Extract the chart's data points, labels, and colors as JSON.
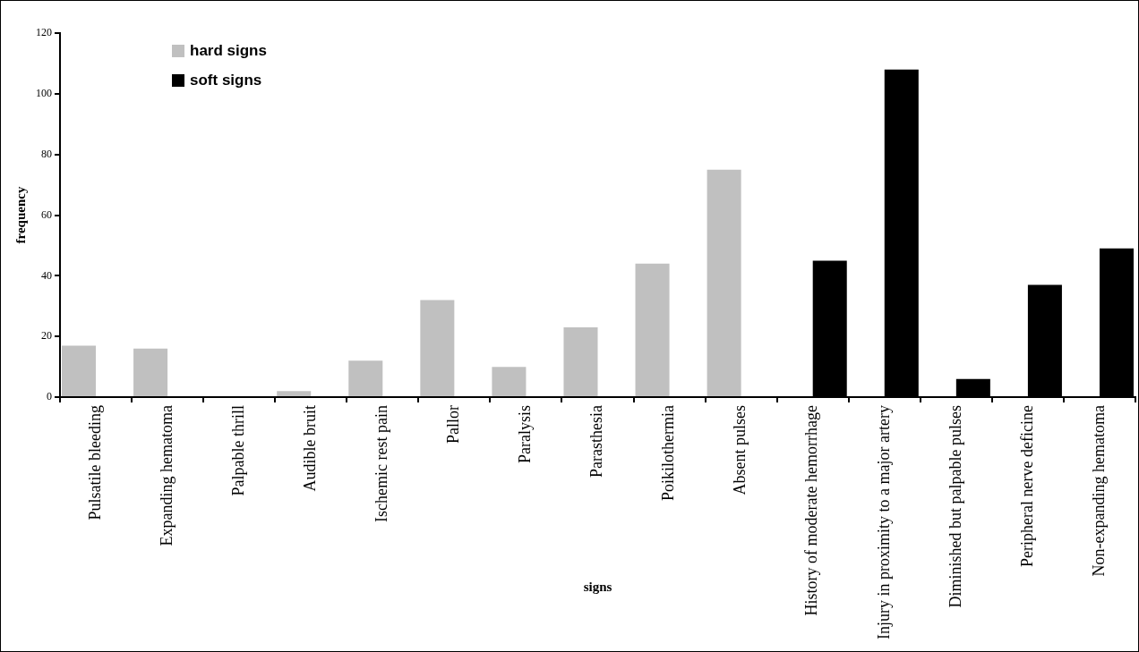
{
  "chart_data": {
    "type": "bar",
    "xlabel": "signs",
    "ylabel": "frequency",
    "categories": [
      "Pulsatile bleeding",
      "Expanding hematoma",
      "Palpable thrill",
      "Audible bruit",
      "Ischemic rest pain",
      "Pallor",
      "Paralysis",
      "Parasthesia",
      "Poikilothermia",
      "Absent pulses",
      "History of moderate hemorrhage",
      "Injury in proximity to a major artery",
      "Diminished but palpable pulses",
      "Peripheral nerve deficine",
      "Non-expanding hematoma"
    ],
    "series": [
      {
        "name": "hard signs",
        "color": "#c0c0c0",
        "values": [
          17,
          16,
          0,
          2,
          12,
          32,
          10,
          23,
          44,
          75,
          null,
          null,
          null,
          null,
          null
        ]
      },
      {
        "name": "soft signs",
        "color": "#000000",
        "values": [
          null,
          null,
          null,
          null,
          null,
          null,
          null,
          null,
          null,
          null,
          45,
          108,
          6,
          37,
          49
        ]
      }
    ],
    "ylim": [
      0,
      120
    ],
    "yticks": [
      0,
      20,
      40,
      60,
      80,
      100,
      120
    ],
    "grid": false,
    "legend": "top left"
  }
}
